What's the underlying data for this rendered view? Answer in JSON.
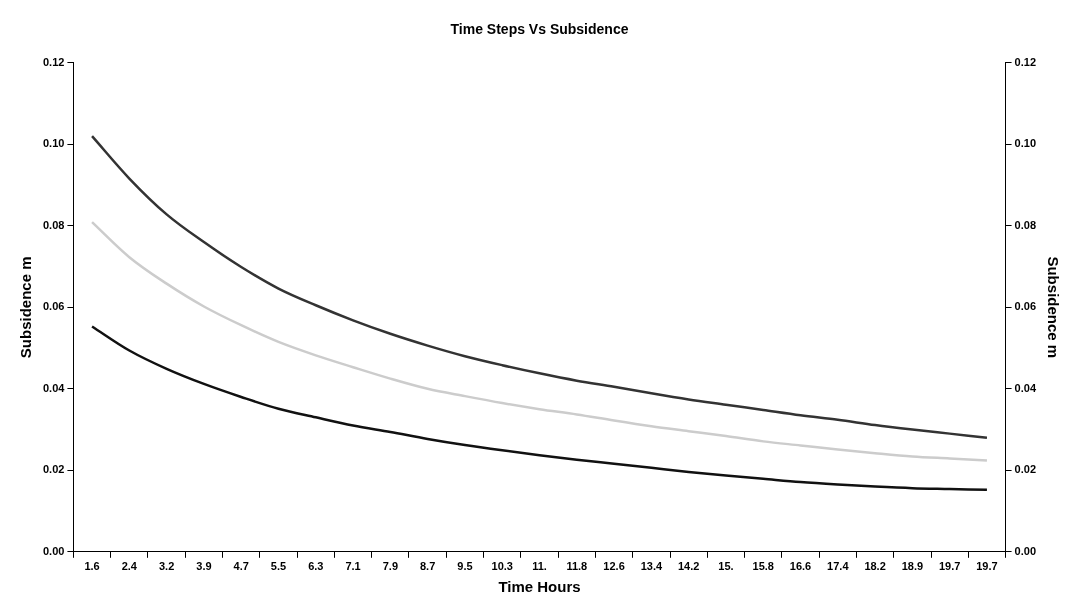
{
  "chart_data": {
    "type": "line",
    "title": "Time Steps Vs Subsidence",
    "xlabel": "Time Hours",
    "ylabel": "Subsidence m",
    "y2label": "Subsidence m",
    "categories": [
      "1.6",
      "2.4",
      "3.2",
      "3.9",
      "4.7",
      "5.5",
      "6.3",
      "7.1",
      "7.9",
      "8.7",
      "9.5",
      "10.3",
      "11.",
      "11.8",
      "12.6",
      "13.4",
      "14.2",
      "15.",
      "15.8",
      "16.6",
      "17.4",
      "18.2",
      "18.9",
      "19.7",
      "19.7"
    ],
    "series": [
      {
        "color": "#333333",
        "values": [
          0.102,
          0.0916,
          0.0828,
          0.076,
          0.0699,
          0.0646,
          0.0605,
          0.0568,
          0.0535,
          0.0506,
          0.048,
          0.0458,
          0.0438,
          0.042,
          0.0405,
          0.0389,
          0.0374,
          0.0361,
          0.0348,
          0.0335,
          0.0324,
          0.0311,
          0.03,
          0.029,
          0.028
        ]
      },
      {
        "color": "#cccccc",
        "values": [
          0.0809,
          0.0723,
          0.0658,
          0.0602,
          0.0556,
          0.0515,
          0.0482,
          0.0453,
          0.0425,
          0.04,
          0.0382,
          0.0365,
          0.035,
          0.0337,
          0.0322,
          0.0308,
          0.0296,
          0.0284,
          0.0271,
          0.0261,
          0.0251,
          0.0242,
          0.0234,
          0.0229,
          0.0224
        ]
      },
      {
        "color": "#111111",
        "values": [
          0.0553,
          0.0494,
          0.0449,
          0.0412,
          0.038,
          0.0351,
          0.033,
          0.031,
          0.0294,
          0.0277,
          0.0262,
          0.0249,
          0.0237,
          0.0226,
          0.0216,
          0.0206,
          0.0196,
          0.0187,
          0.0179,
          0.0171,
          0.0165,
          0.016,
          0.0156,
          0.0154,
          0.0152
        ]
      }
    ],
    "ylim": [
      0,
      0.12
    ],
    "yticks": [
      {
        "value": 0,
        "label": "0.00"
      },
      {
        "value": 0.02,
        "label": "0.02"
      },
      {
        "value": 0.04,
        "label": "0.04"
      },
      {
        "value": 0.06,
        "label": "0.06"
      },
      {
        "value": 0.08,
        "label": "0.08"
      },
      {
        "value": 0.1,
        "label": "0.10"
      },
      {
        "value": 0.12,
        "label": "0.12"
      }
    ],
    "y2lim": [
      0,
      0.12
    ],
    "y2ticks": [
      {
        "value": 0,
        "label": "0.00"
      },
      {
        "value": 0.02,
        "label": "0.02"
      },
      {
        "value": 0.04,
        "label": "0.04"
      },
      {
        "value": 0.06,
        "label": "0.06"
      },
      {
        "value": 0.08,
        "label": "0.08"
      },
      {
        "value": 0.1,
        "label": "0.10"
      },
      {
        "value": 0.12,
        "label": "0.12"
      }
    ],
    "grid": false,
    "legend": false,
    "marker": "none",
    "line_style": "solid"
  }
}
